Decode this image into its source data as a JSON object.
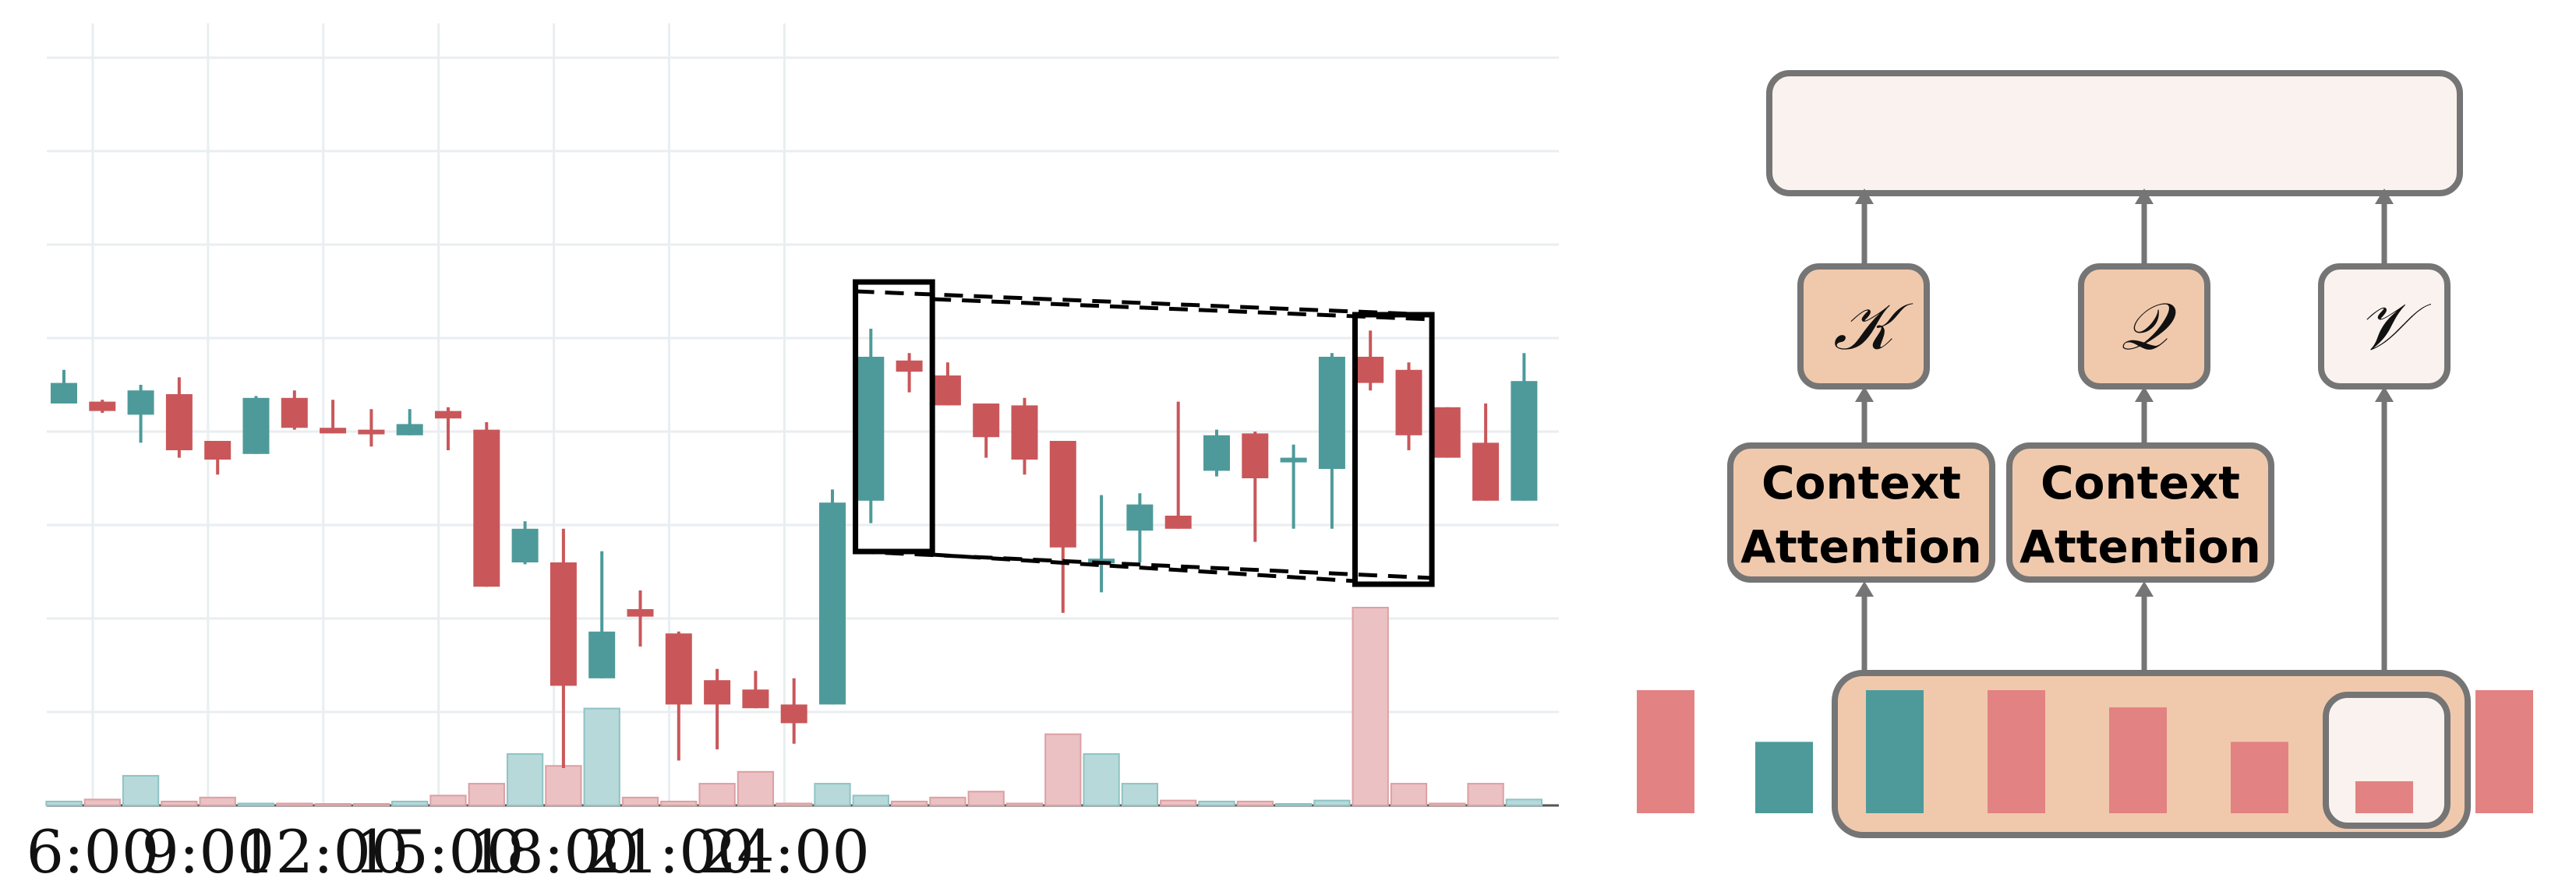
{
  "colors": {
    "up": "#4e9a9a",
    "down": "#c9575a",
    "up_volume": "#b7d9da",
    "down_volume": "#ebc1c3",
    "box_fill": "#f0c9ad",
    "box_light": "#faf2ee",
    "box_stroke": "#757575",
    "token_pink": "#e28282",
    "token_teal": "#4e9a9a"
  },
  "chart_data": {
    "type": "candlestick",
    "x_tick_labels": [
      "6:00",
      "9:00",
      "12:00",
      "15:00",
      "18:00",
      "21:00",
      "24:00"
    ],
    "x_tick_positions": [
      0.75,
      3.75,
      6.75,
      9.75,
      12.75,
      15.75,
      18.75
    ],
    "ylim": [
      0,
      8.4
    ],
    "volume_max": 2.0,
    "candles": [
      {
        "open": 4.3,
        "close": 4.52,
        "high": 4.66,
        "low": 4.3
      },
      {
        "open": 4.32,
        "close": 4.22,
        "high": 4.34,
        "low": 4.2
      },
      {
        "open": 4.18,
        "close": 4.44,
        "high": 4.5,
        "low": 3.88
      },
      {
        "open": 4.4,
        "close": 3.8,
        "high": 4.58,
        "low": 3.72
      },
      {
        "open": 3.9,
        "close": 3.7,
        "high": 3.9,
        "low": 3.54
      },
      {
        "open": 3.76,
        "close": 4.36,
        "high": 4.38,
        "low": 3.76
      },
      {
        "open": 4.36,
        "close": 4.04,
        "high": 4.44,
        "low": 4.02
      },
      {
        "open": 4.04,
        "close": 3.98,
        "high": 4.34,
        "low": 3.98
      },
      {
        "open": 4.02,
        "close": 3.98,
        "high": 4.24,
        "low": 3.84
      },
      {
        "open": 3.96,
        "close": 4.08,
        "high": 4.24,
        "low": 3.96
      },
      {
        "open": 4.22,
        "close": 4.14,
        "high": 4.26,
        "low": 3.8
      },
      {
        "open": 4.02,
        "close": 2.34,
        "high": 4.1,
        "low": 2.34
      },
      {
        "open": 2.6,
        "close": 2.96,
        "high": 3.04,
        "low": 2.58
      },
      {
        "open": 2.6,
        "close": 1.28,
        "high": 2.96,
        "low": 0.4
      },
      {
        "open": 1.36,
        "close": 1.86,
        "high": 2.72,
        "low": 1.36
      },
      {
        "open": 2.1,
        "close": 2.02,
        "high": 2.3,
        "low": 1.7
      },
      {
        "open": 1.84,
        "close": 1.08,
        "high": 1.86,
        "low": 0.48
      },
      {
        "open": 1.34,
        "close": 1.08,
        "high": 1.46,
        "low": 0.6
      },
      {
        "open": 1.24,
        "close": 1.04,
        "high": 1.44,
        "low": 1.04
      },
      {
        "open": 1.08,
        "close": 0.88,
        "high": 1.36,
        "low": 0.66
      },
      {
        "open": 1.08,
        "close": 3.24,
        "high": 3.38,
        "low": 1.08
      },
      {
        "open": 3.26,
        "close": 4.8,
        "high": 5.1,
        "low": 3.02
      },
      {
        "open": 4.76,
        "close": 4.64,
        "high": 4.84,
        "low": 4.42
      },
      {
        "open": 4.6,
        "close": 4.28,
        "high": 4.74,
        "low": 4.28
      },
      {
        "open": 4.3,
        "close": 3.94,
        "high": 4.3,
        "low": 3.72
      },
      {
        "open": 4.28,
        "close": 3.7,
        "high": 4.36,
        "low": 3.54
      },
      {
        "open": 3.9,
        "close": 2.76,
        "high": 3.9,
        "low": 2.06
      },
      {
        "open": 2.64,
        "close": 2.64,
        "high": 3.32,
        "low": 2.28
      },
      {
        "open": 2.94,
        "close": 3.22,
        "high": 3.34,
        "low": 2.6
      },
      {
        "open": 3.1,
        "close": 2.96,
        "high": 4.32,
        "low": 2.96
      },
      {
        "open": 3.58,
        "close": 3.96,
        "high": 4.02,
        "low": 3.52
      },
      {
        "open": 3.98,
        "close": 3.5,
        "high": 4.0,
        "low": 2.82
      },
      {
        "open": 3.7,
        "close": 3.72,
        "high": 3.86,
        "low": 2.96
      },
      {
        "open": 3.6,
        "close": 4.8,
        "high": 4.84,
        "low": 2.96
      },
      {
        "open": 4.8,
        "close": 4.52,
        "high": 5.08,
        "low": 4.44
      },
      {
        "open": 4.66,
        "close": 3.96,
        "high": 4.74,
        "low": 3.8
      },
      {
        "open": 4.26,
        "close": 3.72,
        "high": 4.26,
        "low": 3.72
      },
      {
        "open": 3.88,
        "close": 3.26,
        "high": 4.3,
        "low": 3.26
      },
      {
        "open": 3.26,
        "close": 4.54,
        "high": 4.84,
        "low": 3.26
      }
    ],
    "volumes": [
      0.04,
      0.06,
      0.3,
      0.04,
      0.08,
      0.02,
      0.02,
      0,
      0,
      0.04,
      0.1,
      0.22,
      0.52,
      0.4,
      0.98,
      0.08,
      0.04,
      0.22,
      0.34,
      0.02,
      0.22,
      0.1,
      0.04,
      0.08,
      0.14,
      0.02,
      0.72,
      0.52,
      0.22,
      0.05,
      0.04,
      0.04,
      0,
      0.05,
      2.0,
      0.22,
      0.02,
      0.22,
      0.06
    ],
    "highlight_windows": [
      {
        "from": 20.6,
        "to": 22.6
      },
      {
        "from": 33.6,
        "to": 35.6
      }
    ]
  },
  "diagram": {
    "boxes": {
      "k_symbol": "𝒦",
      "q_symbol": "𝒬",
      "v_symbol": "𝒱",
      "context_attention_1": [
        "Context",
        "Attention"
      ],
      "context_attention_2": [
        "Context",
        "Attention"
      ]
    },
    "tokens": [
      {
        "color": "token_pink",
        "height": 1.0
      },
      {
        "color": "token_teal",
        "height": 0.58
      },
      {
        "color": "token_teal",
        "height": 1.0
      },
      {
        "color": "token_pink",
        "height": 1.0
      },
      {
        "color": "token_pink",
        "height": 0.86
      },
      {
        "color": "token_pink",
        "height": 0.58
      },
      {
        "color": "token_pink",
        "height": 0.26
      },
      {
        "color": "token_pink",
        "height": 1.0
      }
    ]
  }
}
